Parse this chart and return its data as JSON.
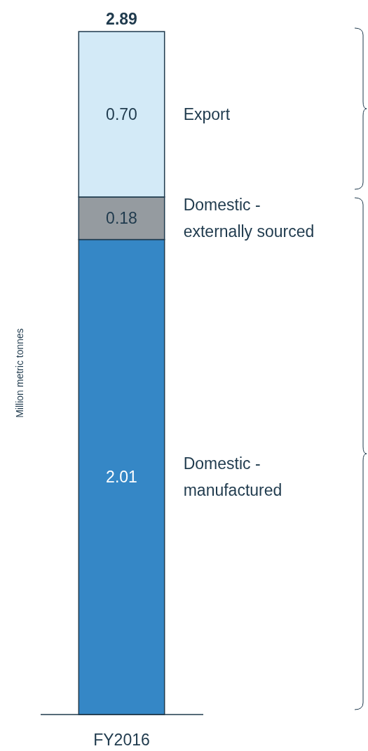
{
  "chart_data": {
    "type": "bar",
    "stacked": true,
    "categories": [
      "FY2016"
    ],
    "annotations": [
      "Million metric tonnes"
    ],
    "totals": [
      "2.89"
    ],
    "series": [
      {
        "name": "Domestic - manufactured",
        "color": "#3587c6",
        "values": [
          2.01
        ],
        "value_labels": [
          "2.01"
        ]
      },
      {
        "name": "Domestic - externally sourced",
        "color": "#959ba0",
        "values": [
          0.18
        ],
        "value_labels": [
          "0.18"
        ]
      },
      {
        "name": "Export",
        "color": "#d3eaf7",
        "values": [
          0.7
        ],
        "value_labels": [
          "0.70"
        ]
      }
    ]
  }
}
